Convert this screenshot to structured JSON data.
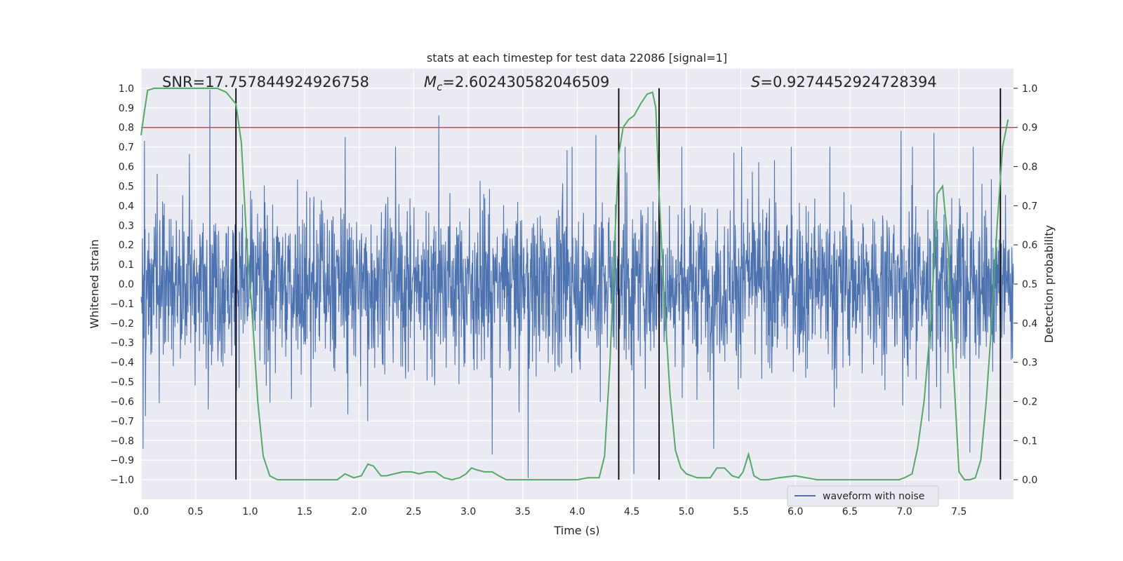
{
  "chart_data": {
    "type": "line",
    "title": "stats at each timestep for test data 22086 [signal=1]",
    "xlabel": "Time (s)",
    "ylabel": "Whitened strain",
    "y2label": "Detection probability",
    "xlim": [
      0.0,
      8.0
    ],
    "ylim": [
      -1.1,
      1.1
    ],
    "y2lim": [
      -0.05,
      1.05
    ],
    "xticks": [
      0.0,
      0.5,
      1.0,
      1.5,
      2.0,
      2.5,
      3.0,
      3.5,
      4.0,
      4.5,
      5.0,
      5.5,
      6.0,
      6.5,
      7.0,
      7.5
    ],
    "xtick_labels": [
      "0.0",
      "0.5",
      "1.0",
      "1.5",
      "2.0",
      "2.5",
      "3.0",
      "3.5",
      "4.0",
      "4.5",
      "5.0",
      "5.5",
      "6.0",
      "6.5",
      "7.0",
      "7.5"
    ],
    "yticks": [
      1.0,
      0.9,
      0.8,
      0.7,
      0.6,
      0.5,
      0.4,
      0.3,
      0.2,
      0.1,
      0.0,
      -0.1,
      -0.2,
      -0.3,
      -0.4,
      -0.5,
      -0.6,
      -0.7,
      -0.8,
      -0.9,
      -1.0
    ],
    "ytick_labels": [
      "1.0",
      "0.9",
      "0.8",
      "0.7",
      "0.6",
      "0.5",
      "0.4",
      "0.3",
      "0.2",
      "0.1",
      "0.0",
      "−0.1",
      "−0.2",
      "−0.3",
      "−0.4",
      "−0.5",
      "−0.6",
      "−0.7",
      "−0.8",
      "−0.9",
      "−1.0"
    ],
    "y2ticks": [
      1.0,
      0.9,
      0.8,
      0.7,
      0.6,
      0.5,
      0.4,
      0.3,
      0.2,
      0.1,
      0.0
    ],
    "y2tick_labels": [
      "1.0",
      "0.9",
      "0.8",
      "0.7",
      "0.6",
      "0.5",
      "0.4",
      "0.3",
      "0.2",
      "0.1",
      "0.0"
    ],
    "annotations": {
      "snr": "SNR=17.757844924926758",
      "mc_symbol": "M",
      "mc_sub": "c",
      "mc_value": "=2.602430582046509",
      "s_symbol": "S",
      "s_value": "=0.9274452924728394"
    },
    "threshold": {
      "value": 0.9,
      "axis": "right",
      "color": "#c44e52"
    },
    "vlines": [
      0.87,
      4.38,
      4.75,
      7.88
    ],
    "legend": {
      "label": "waveform with noise",
      "position": "lower-right"
    },
    "colors": {
      "waveform": "#4c72b0",
      "probability": "#55a868",
      "threshold": "#c44e52",
      "vline": "#000000",
      "axes_bg": "#eaeaf2",
      "grid": "#ffffff"
    },
    "series": [
      {
        "name": "waveform with noise",
        "axis": "left",
        "kind": "noise",
        "envelope": 0.6,
        "t_range": [
          0.0,
          8.0
        ],
        "peaks": [
          {
            "t": 0.63,
            "v": 0.99
          },
          {
            "t": 0.87,
            "v": 0.84
          },
          {
            "t": 2.73,
            "v": 0.86
          },
          {
            "t": 0.03,
            "v": 0.73
          },
          {
            "t": 1.87,
            "v": 0.75
          },
          {
            "t": 4.17,
            "v": 0.76
          },
          {
            "t": 6.97,
            "v": 0.78
          },
          {
            "t": 7.27,
            "v": 0.77
          },
          {
            "t": 3.55,
            "v": -0.99
          },
          {
            "t": 0.02,
            "v": -0.84
          },
          {
            "t": 3.22,
            "v": -0.87
          },
          {
            "t": 4.52,
            "v": -0.97
          },
          {
            "t": 5.25,
            "v": -0.84
          },
          {
            "t": 7.6,
            "v": -0.86
          }
        ]
      },
      {
        "name": "detection probability",
        "axis": "right",
        "x": [
          0.0,
          0.03,
          0.06,
          0.12,
          0.2,
          0.3,
          0.4,
          0.5,
          0.6,
          0.7,
          0.78,
          0.84,
          0.87,
          0.92,
          0.97,
          1.02,
          1.07,
          1.12,
          1.18,
          1.25,
          1.35,
          1.5,
          1.6,
          1.7,
          1.75,
          1.8,
          1.87,
          1.95,
          2.02,
          2.08,
          2.13,
          2.2,
          2.25,
          2.32,
          2.4,
          2.48,
          2.55,
          2.62,
          2.7,
          2.78,
          2.85,
          2.92,
          2.98,
          3.03,
          3.08,
          3.15,
          3.22,
          3.28,
          3.35,
          3.4,
          3.5,
          3.6,
          3.7,
          3.8,
          3.9,
          4.0,
          4.1,
          4.2,
          4.25,
          4.3,
          4.35,
          4.38,
          4.42,
          4.47,
          4.52,
          4.58,
          4.64,
          4.69,
          4.72,
          4.75,
          4.8,
          4.85,
          4.9,
          4.95,
          5.0,
          5.1,
          5.15,
          5.22,
          5.28,
          5.35,
          5.42,
          5.48,
          5.52,
          5.57,
          5.62,
          5.68,
          5.75,
          5.85,
          6.0,
          6.2,
          6.4,
          6.6,
          6.8,
          6.95,
          7.0,
          7.07,
          7.12,
          7.18,
          7.25,
          7.3,
          7.35,
          7.4,
          7.45,
          7.5,
          7.55,
          7.6,
          7.65,
          7.7,
          7.75,
          7.8,
          7.85,
          7.9,
          7.95
        ],
        "y": [
          0.88,
          0.94,
          0.995,
          1.0,
          1.0,
          1.0,
          1.0,
          1.0,
          1.0,
          1.0,
          0.99,
          0.97,
          0.96,
          0.86,
          0.6,
          0.42,
          0.2,
          0.06,
          0.01,
          0.0,
          0.0,
          0.0,
          0.0,
          0.0,
          0.0,
          0.0,
          0.015,
          0.005,
          0.01,
          0.04,
          0.035,
          0.01,
          0.01,
          0.015,
          0.02,
          0.02,
          0.015,
          0.02,
          0.02,
          0.005,
          0.0,
          0.005,
          0.015,
          0.03,
          0.025,
          0.02,
          0.02,
          0.01,
          0.0,
          0.0,
          0.0,
          0.0,
          0.0,
          0.0,
          0.0,
          0.0,
          0.005,
          0.005,
          0.06,
          0.3,
          0.65,
          0.83,
          0.9,
          0.92,
          0.93,
          0.96,
          0.985,
          0.99,
          0.95,
          0.73,
          0.45,
          0.22,
          0.075,
          0.03,
          0.015,
          0.005,
          0.005,
          0.005,
          0.03,
          0.03,
          0.01,
          0.005,
          0.02,
          0.065,
          0.01,
          0.0,
          0.0,
          0.005,
          0.01,
          0.0,
          0.0,
          0.0,
          0.0,
          0.0,
          0.005,
          0.015,
          0.08,
          0.2,
          0.43,
          0.73,
          0.75,
          0.6,
          0.28,
          0.02,
          0.0,
          0.0,
          0.005,
          0.05,
          0.2,
          0.4,
          0.65,
          0.85,
          0.92
        ]
      }
    ]
  }
}
